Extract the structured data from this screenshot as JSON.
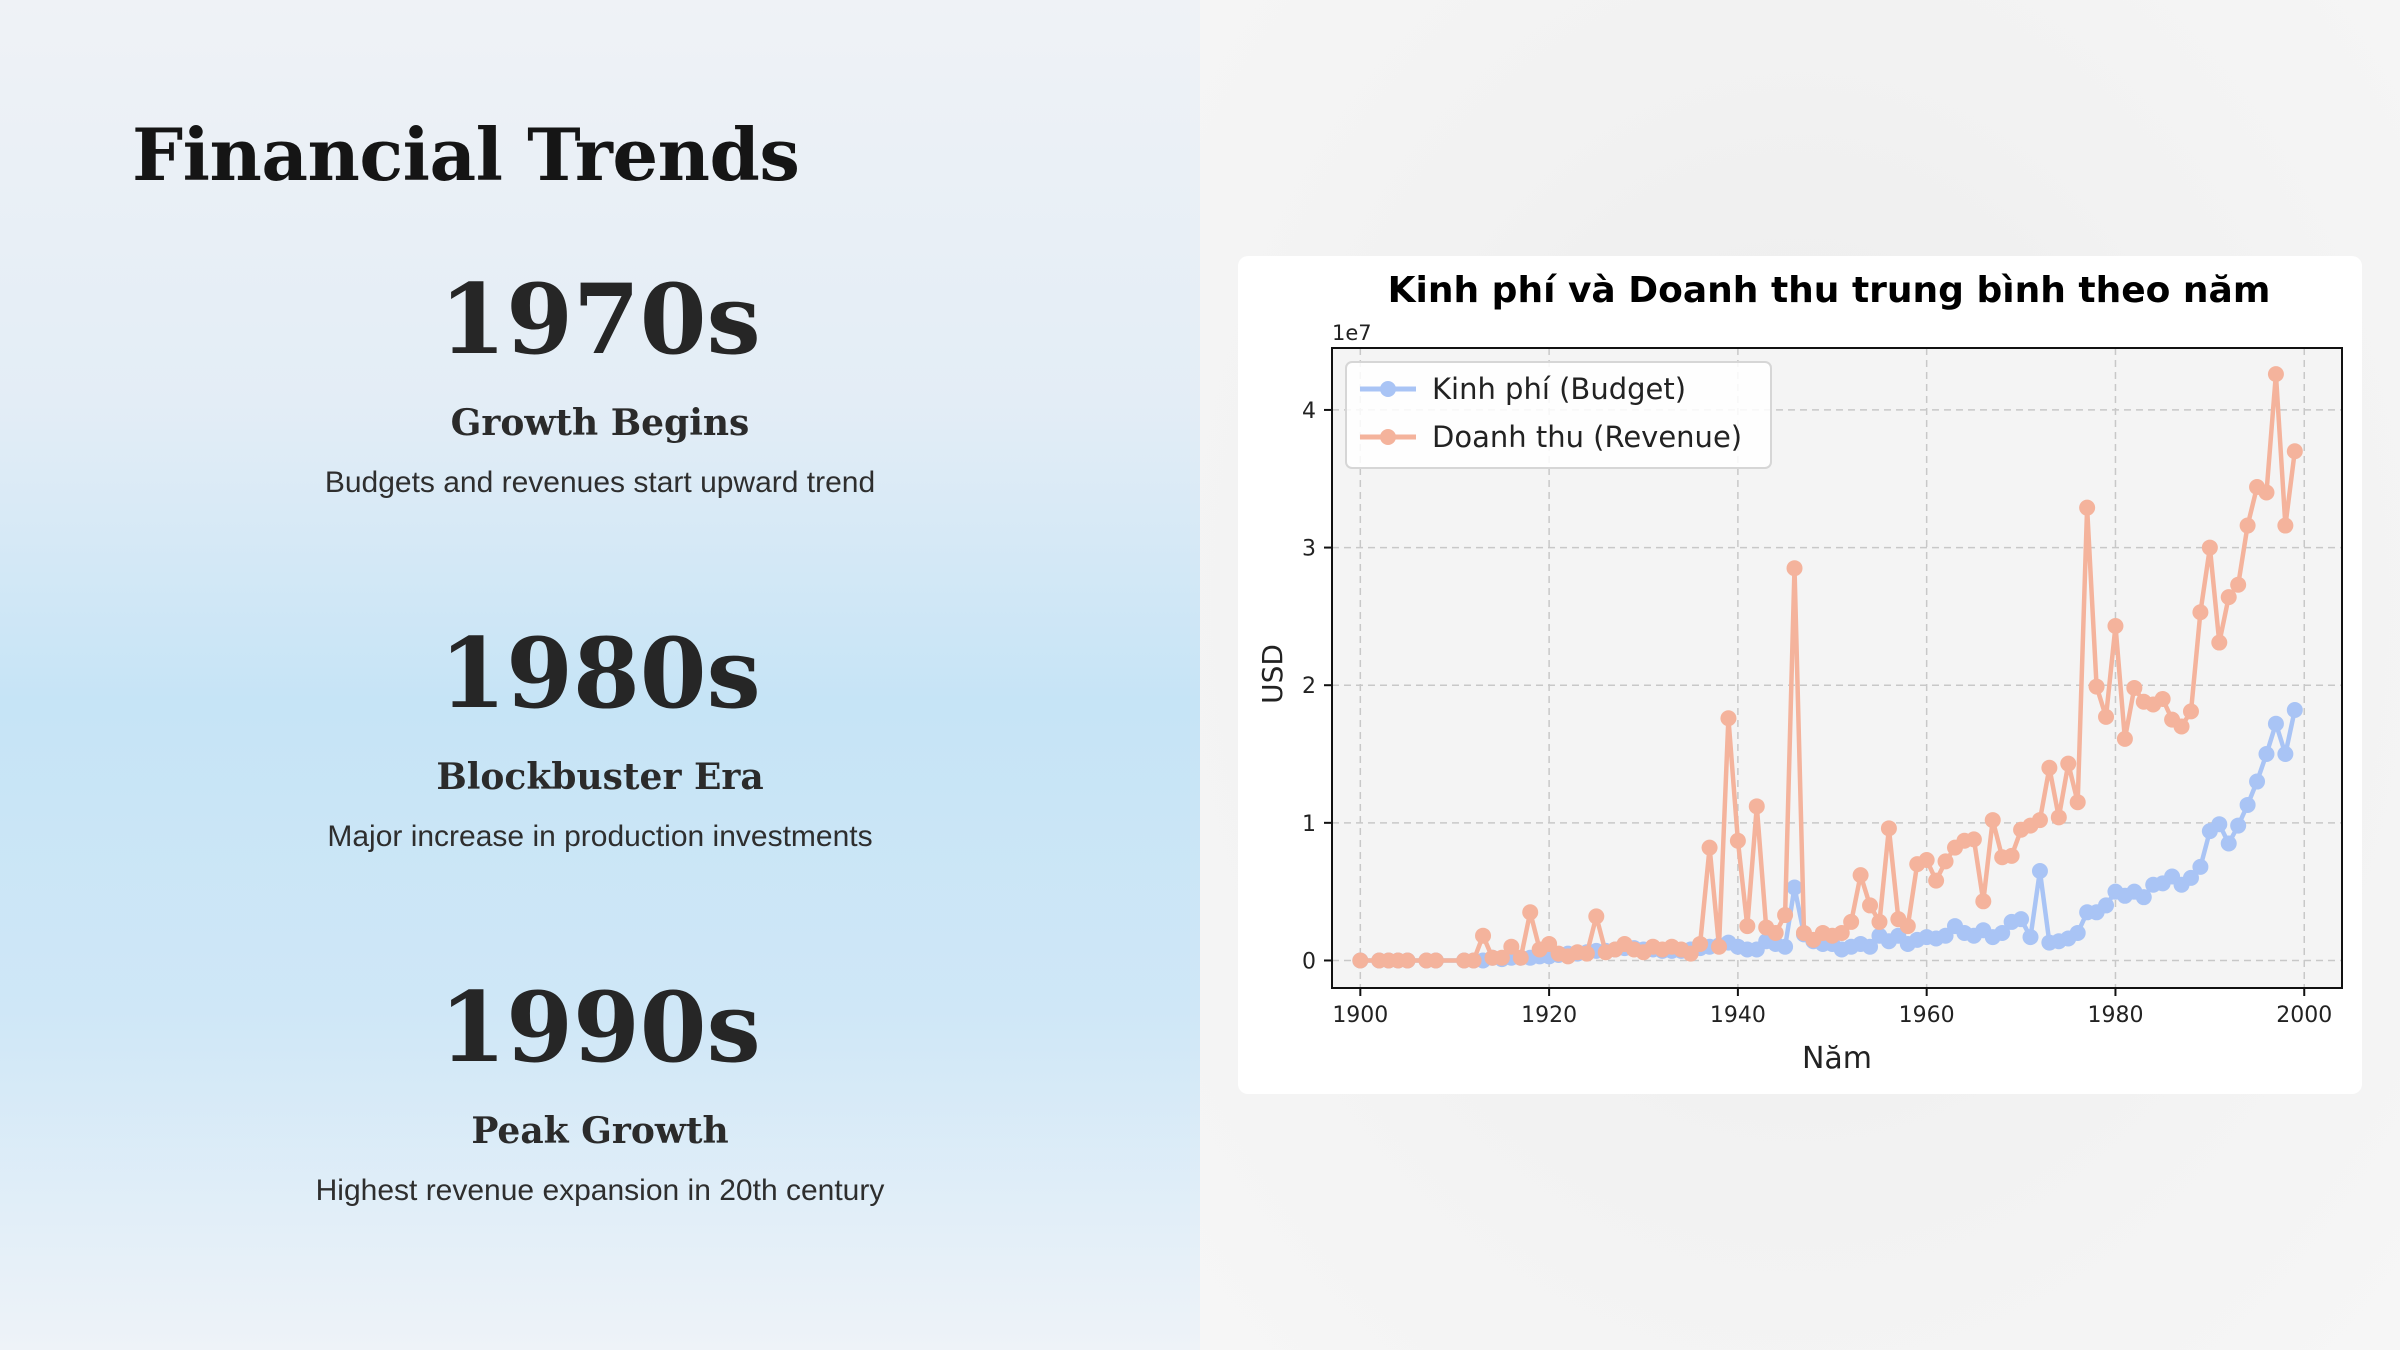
{
  "slide": {
    "title": "Financial Trends",
    "eras": [
      {
        "year": "1970s",
        "heading": "Growth Begins",
        "description": "Budgets and revenues start upward trend"
      },
      {
        "year": "1980s",
        "heading": "Blockbuster Era",
        "description": "Major increase in production investments"
      },
      {
        "year": "1990s",
        "heading": "Peak Growth",
        "description": "Highest revenue expansion in 20th century"
      }
    ]
  },
  "colors": {
    "budget": "#a9c4f5",
    "revenue": "#f4b39c",
    "plot_bg": "#f4f4f4",
    "grid": "#c8c8c8"
  },
  "chart_data": {
    "type": "line",
    "title": "Kinh phí và Doanh thu trung bình theo năm",
    "xlabel": "Năm",
    "ylabel": "USD",
    "y_scale_label": "1e7",
    "xlim": [
      1897,
      2004
    ],
    "ylim": [
      -0.2,
      4.45
    ],
    "x_ticks": [
      1900,
      1920,
      1940,
      1960,
      1980,
      2000
    ],
    "y_ticks": [
      0,
      1,
      2,
      3,
      4
    ],
    "grid": true,
    "legend_position": "top-left",
    "series": [
      {
        "name": "Kinh phí (Budget)",
        "color": "#a9c4f5",
        "points": [
          [
            1900,
            0
          ],
          [
            1902,
            0
          ],
          [
            1903,
            0
          ],
          [
            1904,
            0
          ],
          [
            1905,
            0
          ],
          [
            1907,
            0
          ],
          [
            1908,
            0
          ],
          [
            1911,
            0
          ],
          [
            1912,
            0
          ],
          [
            1913,
            0
          ],
          [
            1914,
            0.02
          ],
          [
            1915,
            0.01
          ],
          [
            1916,
            0.02
          ],
          [
            1917,
            0.02
          ],
          [
            1918,
            0.02
          ],
          [
            1919,
            0.03
          ],
          [
            1920,
            0.03
          ],
          [
            1921,
            0.04
          ],
          [
            1922,
            0.05
          ],
          [
            1923,
            0.05
          ],
          [
            1924,
            0.06
          ],
          [
            1925,
            0.07
          ],
          [
            1926,
            0.07
          ],
          [
            1927,
            0.08
          ],
          [
            1928,
            0.09
          ],
          [
            1929,
            0.09
          ],
          [
            1930,
            0.08
          ],
          [
            1931,
            0.08
          ],
          [
            1932,
            0.07
          ],
          [
            1933,
            0.07
          ],
          [
            1934,
            0.07
          ],
          [
            1935,
            0.08
          ],
          [
            1936,
            0.09
          ],
          [
            1937,
            0.1
          ],
          [
            1938,
            0.11
          ],
          [
            1939,
            0.13
          ],
          [
            1940,
            0.1
          ],
          [
            1941,
            0.08
          ],
          [
            1942,
            0.08
          ],
          [
            1943,
            0.14
          ],
          [
            1944,
            0.12
          ],
          [
            1945,
            0.1
          ],
          [
            1946,
            0.53
          ],
          [
            1947,
            0.19
          ],
          [
            1948,
            0.14
          ],
          [
            1949,
            0.12
          ],
          [
            1950,
            0.12
          ],
          [
            1951,
            0.08
          ],
          [
            1952,
            0.1
          ],
          [
            1953,
            0.12
          ],
          [
            1954,
            0.1
          ],
          [
            1955,
            0.18
          ],
          [
            1956,
            0.14
          ],
          [
            1957,
            0.18
          ],
          [
            1958,
            0.12
          ],
          [
            1959,
            0.15
          ],
          [
            1960,
            0.17
          ],
          [
            1961,
            0.16
          ],
          [
            1962,
            0.18
          ],
          [
            1963,
            0.25
          ],
          [
            1964,
            0.2
          ],
          [
            1965,
            0.18
          ],
          [
            1966,
            0.22
          ],
          [
            1967,
            0.17
          ],
          [
            1968,
            0.2
          ],
          [
            1969,
            0.28
          ],
          [
            1970,
            0.3
          ],
          [
            1971,
            0.17
          ],
          [
            1972,
            0.65
          ],
          [
            1973,
            0.13
          ],
          [
            1974,
            0.14
          ],
          [
            1975,
            0.16
          ],
          [
            1976,
            0.2
          ],
          [
            1977,
            0.35
          ],
          [
            1978,
            0.35
          ],
          [
            1979,
            0.4
          ],
          [
            1980,
            0.5
          ],
          [
            1981,
            0.47
          ],
          [
            1982,
            0.5
          ],
          [
            1983,
            0.46
          ],
          [
            1984,
            0.55
          ],
          [
            1985,
            0.56
          ],
          [
            1986,
            0.61
          ],
          [
            1987,
            0.55
          ],
          [
            1988,
            0.6
          ],
          [
            1989,
            0.68
          ],
          [
            1990,
            0.94
          ],
          [
            1991,
            0.99
          ],
          [
            1992,
            0.85
          ],
          [
            1993,
            0.98
          ],
          [
            1994,
            1.13
          ],
          [
            1995,
            1.3
          ],
          [
            1996,
            1.5
          ],
          [
            1997,
            1.72
          ],
          [
            1998,
            1.5
          ],
          [
            1999,
            1.82
          ]
        ]
      },
      {
        "name": "Doanh thu (Revenue)",
        "color": "#f4b39c",
        "points": [
          [
            1900,
            0
          ],
          [
            1902,
            0
          ],
          [
            1903,
            0
          ],
          [
            1904,
            0
          ],
          [
            1905,
            0
          ],
          [
            1907,
            0
          ],
          [
            1908,
            0
          ],
          [
            1911,
            0
          ],
          [
            1912,
            0
          ],
          [
            1913,
            0.18
          ],
          [
            1914,
            0.02
          ],
          [
            1915,
            0.02
          ],
          [
            1916,
            0.1
          ],
          [
            1917,
            0.02
          ],
          [
            1918,
            0.35
          ],
          [
            1919,
            0.08
          ],
          [
            1920,
            0.12
          ],
          [
            1921,
            0.05
          ],
          [
            1922,
            0.03
          ],
          [
            1923,
            0.06
          ],
          [
            1924,
            0.05
          ],
          [
            1925,
            0.32
          ],
          [
            1926,
            0.06
          ],
          [
            1927,
            0.08
          ],
          [
            1928,
            0.12
          ],
          [
            1929,
            0.08
          ],
          [
            1930,
            0.06
          ],
          [
            1931,
            0.1
          ],
          [
            1932,
            0.08
          ],
          [
            1933,
            0.1
          ],
          [
            1934,
            0.08
          ],
          [
            1935,
            0.05
          ],
          [
            1936,
            0.12
          ],
          [
            1937,
            0.82
          ],
          [
            1938,
            0.1
          ],
          [
            1939,
            1.76
          ],
          [
            1940,
            0.87
          ],
          [
            1941,
            0.25
          ],
          [
            1942,
            1.12
          ],
          [
            1943,
            0.24
          ],
          [
            1944,
            0.2
          ],
          [
            1945,
            0.33
          ],
          [
            1946,
            2.85
          ],
          [
            1947,
            0.2
          ],
          [
            1948,
            0.15
          ],
          [
            1949,
            0.2
          ],
          [
            1950,
            0.18
          ],
          [
            1951,
            0.2
          ],
          [
            1952,
            0.28
          ],
          [
            1953,
            0.62
          ],
          [
            1954,
            0.4
          ],
          [
            1955,
            0.28
          ],
          [
            1956,
            0.96
          ],
          [
            1957,
            0.3
          ],
          [
            1958,
            0.25
          ],
          [
            1959,
            0.7
          ],
          [
            1960,
            0.73
          ],
          [
            1961,
            0.58
          ],
          [
            1962,
            0.72
          ],
          [
            1963,
            0.82
          ],
          [
            1964,
            0.87
          ],
          [
            1965,
            0.88
          ],
          [
            1966,
            0.43
          ],
          [
            1967,
            1.02
          ],
          [
            1968,
            0.75
          ],
          [
            1969,
            0.76
          ],
          [
            1970,
            0.95
          ],
          [
            1971,
            0.98
          ],
          [
            1972,
            1.02
          ],
          [
            1973,
            1.4
          ],
          [
            1974,
            1.04
          ],
          [
            1975,
            1.43
          ],
          [
            1976,
            1.15
          ],
          [
            1977,
            3.29
          ],
          [
            1978,
            1.99
          ],
          [
            1979,
            1.77
          ],
          [
            1980,
            2.43
          ],
          [
            1981,
            1.61
          ],
          [
            1982,
            1.98
          ],
          [
            1983,
            1.88
          ],
          [
            1984,
            1.86
          ],
          [
            1985,
            1.9
          ],
          [
            1986,
            1.75
          ],
          [
            1987,
            1.7
          ],
          [
            1988,
            1.81
          ],
          [
            1989,
            2.53
          ],
          [
            1990,
            3.0
          ],
          [
            1991,
            2.31
          ],
          [
            1992,
            2.64
          ],
          [
            1993,
            2.73
          ],
          [
            1994,
            3.16
          ],
          [
            1995,
            3.44
          ],
          [
            1996,
            3.4
          ],
          [
            1997,
            4.26
          ],
          [
            1998,
            3.16
          ],
          [
            1999,
            3.7
          ]
        ]
      }
    ]
  }
}
